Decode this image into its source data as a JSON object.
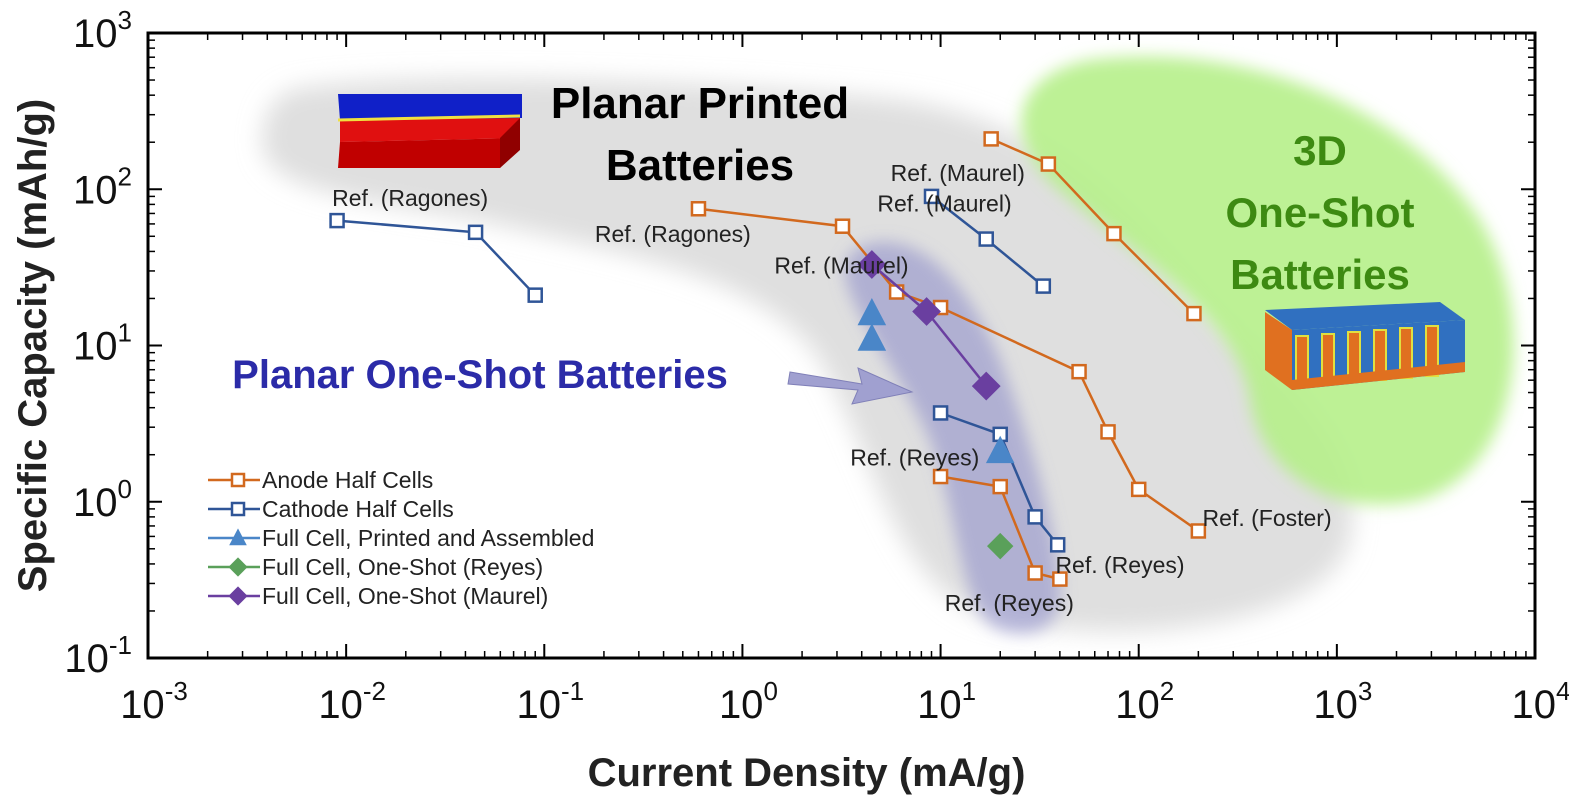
{
  "chart_data": {
    "type": "scatter",
    "xlabel": "Current Density (mA/g)",
    "ylabel": "Specific Capacity (mAh/g)",
    "x_scale": "log",
    "y_scale": "log",
    "xlim": [
      0.001,
      10000
    ],
    "ylim": [
      0.1,
      1000
    ],
    "x_ticks": [
      {
        "base": "10",
        "exp": "-3",
        "value": 0.001
      },
      {
        "base": "10",
        "exp": "-2",
        "value": 0.01
      },
      {
        "base": "10",
        "exp": "-1",
        "value": 0.1
      },
      {
        "base": "10",
        "exp": "0",
        "value": 1
      },
      {
        "base": "10",
        "exp": "1",
        "value": 10
      },
      {
        "base": "10",
        "exp": "2",
        "value": 100
      },
      {
        "base": "10",
        "exp": "3",
        "value": 1000
      },
      {
        "base": "10",
        "exp": "4",
        "value": 10000
      }
    ],
    "y_ticks": [
      {
        "base": "10",
        "exp": "-1",
        "value": 0.1
      },
      {
        "base": "10",
        "exp": "0",
        "value": 1
      },
      {
        "base": "10",
        "exp": "1",
        "value": 10
      },
      {
        "base": "10",
        "exp": "2",
        "value": 100
      },
      {
        "base": "10",
        "exp": "3",
        "value": 1000
      }
    ],
    "grid": false,
    "legend_position": "bottom-left",
    "legend": [
      {
        "label": "Anode Half Cells",
        "color": "#d2691e",
        "marker": "open-square"
      },
      {
        "label": "Cathode Half Cells",
        "color": "#2f5597",
        "marker": "open-square"
      },
      {
        "label": "Full Cell, Printed and Assembled",
        "color": "#4a86c8",
        "marker": "triangle"
      },
      {
        "label": "Full Cell, One-Shot (Reyes)",
        "color": "#5aa05a",
        "marker": "diamond"
      },
      {
        "label": "Full Cell, One-Shot (Maurel)",
        "color": "#6a3fa0",
        "marker": "diamond"
      }
    ],
    "series": [
      {
        "category": "anode",
        "points": [
          [
            0.6,
            75
          ],
          [
            3.2,
            58
          ],
          [
            6,
            22
          ],
          [
            10,
            17.5
          ],
          [
            50,
            6.8
          ],
          [
            70,
            2.8
          ],
          [
            100,
            1.2
          ],
          [
            200,
            0.65
          ]
        ]
      },
      {
        "category": "anode",
        "points": [
          [
            18,
            210
          ],
          [
            35,
            145
          ],
          [
            75,
            52
          ],
          [
            190,
            16
          ]
        ]
      },
      {
        "category": "anode",
        "points": [
          [
            10,
            1.45
          ],
          [
            20,
            1.25
          ],
          [
            30,
            0.35
          ],
          [
            40,
            0.32
          ]
        ]
      },
      {
        "category": "cathode",
        "points": [
          [
            0.009,
            63
          ],
          [
            0.045,
            53
          ],
          [
            0.09,
            21
          ]
        ]
      },
      {
        "category": "cathode",
        "points": [
          [
            9,
            90
          ],
          [
            17,
            48
          ],
          [
            33,
            24
          ]
        ]
      },
      {
        "category": "cathode",
        "points": [
          [
            10,
            3.7
          ],
          [
            20,
            2.7
          ],
          [
            30,
            0.8
          ],
          [
            39,
            0.53
          ]
        ]
      },
      {
        "category": "full-printed",
        "points": [
          [
            4.5,
            16
          ],
          [
            4.5,
            11
          ],
          [
            20,
            2.1
          ]
        ]
      },
      {
        "category": "full-reyes",
        "points": [
          [
            20,
            0.52
          ]
        ]
      },
      {
        "category": "full-maurel",
        "points": [
          [
            4.5,
            33
          ],
          [
            8.5,
            16.5
          ],
          [
            17,
            5.5
          ]
        ]
      }
    ],
    "annotations": [
      {
        "text": "Ref. (Ragones)",
        "x": 0.0085,
        "y": 78
      },
      {
        "text": "Ref. (Ragones)",
        "x": 0.18,
        "y": 46
      },
      {
        "text": "Ref. (Maurel)",
        "x": 1.45,
        "y": 29
      },
      {
        "text": "Ref. (Maurel)",
        "x": 5.6,
        "y": 113
      },
      {
        "text": "Ref. (Maurel)",
        "x": 4.8,
        "y": 72
      },
      {
        "text": "Ref. (Reyes)",
        "x": 3.5,
        "y": 1.7
      },
      {
        "text": "Ref. (Reyes)",
        "x": 10.5,
        "y": 0.2
      },
      {
        "text": "Ref. (Reyes)",
        "x": 38,
        "y": 0.35
      },
      {
        "text": "Ref. (Foster)",
        "x": 210,
        "y": 0.7
      }
    ],
    "regions": [
      {
        "name": "planar-printed",
        "lines": [
          "Planar Printed",
          "Batteries"
        ],
        "color": "#000000"
      },
      {
        "name": "planar-one-shot",
        "lines": [
          "Planar One-Shot Batteries"
        ],
        "color": "#2b2ba8"
      },
      {
        "name": "3d-one-shot",
        "lines": [
          "3D",
          "One-Shot",
          "Batteries"
        ],
        "color": "#3d8a12"
      }
    ],
    "colors": {
      "anode": "#d2691e",
      "cathode": "#2f5597",
      "full_printed": "#4a86c8",
      "full_reyes": "#5aa05a",
      "full_maurel": "#6a3fa0",
      "planar_printed_region": "#d9d9d9",
      "planar_one_shot_region": "#8888c8",
      "3d_region": "#b6f08a"
    }
  }
}
